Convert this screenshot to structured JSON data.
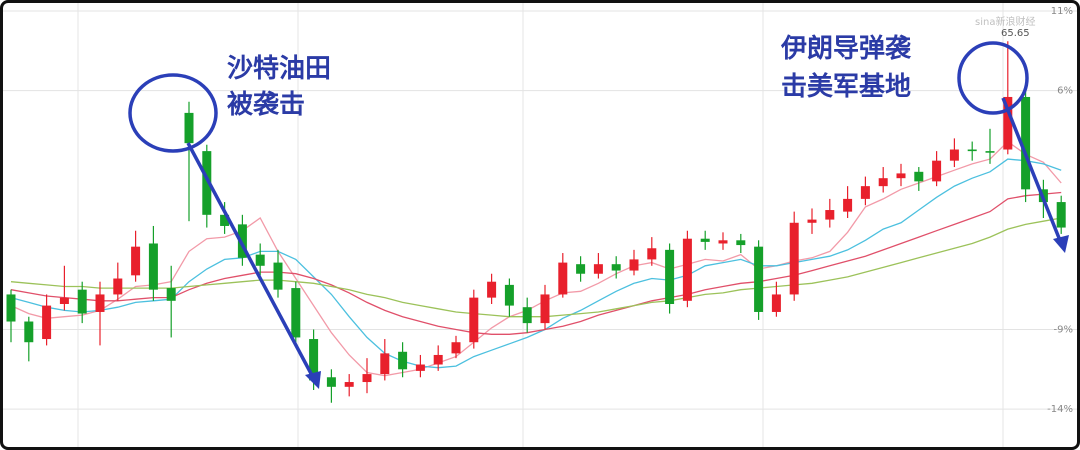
{
  "chart_data": {
    "type": "candlestick",
    "ylim": [
      -15.5,
      11.5
    ],
    "yticks": [
      {
        "value": 11,
        "label": "11%"
      },
      {
        "value": 6,
        "label": "6%"
      },
      {
        "value": -9,
        "label": "-9%"
      },
      {
        "value": -14,
        "label": "-14%"
      }
    ],
    "grid": true,
    "up_color": "#e8202c",
    "down_color": "#15a02a",
    "annotations": [
      "沙特油田",
      "被袭击",
      "伊朗导弹袭",
      "击美军基地"
    ],
    "peak_label": "65.65",
    "watermark": "sina新浪财经",
    "ohlc": [
      [
        -6.8,
        -6.5,
        -9.8,
        -8.5
      ],
      [
        -8.5,
        -8.2,
        -11.0,
        -9.8
      ],
      [
        -9.6,
        -6.8,
        -10.0,
        -7.5
      ],
      [
        -7.4,
        -5.0,
        -7.8,
        -7.0
      ],
      [
        -6.5,
        -6.0,
        -8.6,
        -8.0
      ],
      [
        -7.9,
        -6.0,
        -10.0,
        -6.8
      ],
      [
        -6.8,
        -4.8,
        -7.2,
        -5.8
      ],
      [
        -5.6,
        -2.8,
        -6.0,
        -3.8
      ],
      [
        -3.6,
        -2.5,
        -7.2,
        -6.5
      ],
      [
        -6.4,
        -5.0,
        -9.5,
        -7.2
      ],
      [
        4.6,
        5.3,
        -2.2,
        2.7
      ],
      [
        2.2,
        2.6,
        -2.6,
        -1.8
      ],
      [
        -1.8,
        -1.0,
        -3.0,
        -2.5
      ],
      [
        -2.4,
        -1.8,
        -5.0,
        -4.5
      ],
      [
        -4.3,
        -3.6,
        -5.6,
        -5.0
      ],
      [
        -4.8,
        -4.0,
        -7.0,
        -6.5
      ],
      [
        -6.4,
        -6.0,
        -10.0,
        -9.5
      ],
      [
        -9.6,
        -9.0,
        -12.8,
        -12.2
      ],
      [
        -12.0,
        -11.5,
        -13.6,
        -12.6
      ],
      [
        -12.6,
        -11.8,
        -13.2,
        -12.3
      ],
      [
        -12.3,
        -10.8,
        -13.0,
        -11.8
      ],
      [
        -11.8,
        -9.6,
        -12.2,
        -10.5
      ],
      [
        -10.4,
        -9.8,
        -12.0,
        -11.5
      ],
      [
        -11.6,
        -10.6,
        -12.0,
        -11.2
      ],
      [
        -11.2,
        -10.0,
        -11.6,
        -10.6
      ],
      [
        -10.5,
        -9.4,
        -10.8,
        -9.8
      ],
      [
        -9.8,
        -6.5,
        -10.2,
        -7.0
      ],
      [
        -7.0,
        -5.5,
        -7.4,
        -6.0
      ],
      [
        -6.2,
        -5.8,
        -8.2,
        -7.5
      ],
      [
        -7.6,
        -7.0,
        -9.2,
        -8.6
      ],
      [
        -8.6,
        -6.2,
        -9.0,
        -6.8
      ],
      [
        -6.8,
        -4.2,
        -7.0,
        -4.8
      ],
      [
        -4.9,
        -4.4,
        -6.0,
        -5.5
      ],
      [
        -5.5,
        -4.2,
        -5.8,
        -4.9
      ],
      [
        -4.9,
        -4.4,
        -5.8,
        -5.3
      ],
      [
        -5.3,
        -4.0,
        -5.6,
        -4.6
      ],
      [
        -4.6,
        -3.2,
        -5.0,
        -3.9
      ],
      [
        -4.0,
        -3.6,
        -8.0,
        -7.4
      ],
      [
        -7.2,
        -2.8,
        -7.6,
        -3.3
      ],
      [
        -3.3,
        -2.8,
        -4.0,
        -3.5
      ],
      [
        -3.6,
        -2.9,
        -4.0,
        -3.4
      ],
      [
        -3.4,
        -3.0,
        -4.2,
        -3.7
      ],
      [
        -3.8,
        -3.4,
        -8.4,
        -7.9
      ],
      [
        -7.9,
        -6.0,
        -8.2,
        -6.8
      ],
      [
        -6.8,
        -1.6,
        -7.2,
        -2.3
      ],
      [
        -2.3,
        -1.4,
        -3.0,
        -2.1
      ],
      [
        -2.1,
        -0.8,
        -2.6,
        -1.5
      ],
      [
        -1.6,
        0.0,
        -2.0,
        -0.8
      ],
      [
        -0.8,
        0.6,
        -1.2,
        0.0
      ],
      [
        0.0,
        1.2,
        -0.4,
        0.5
      ],
      [
        0.5,
        1.4,
        0.0,
        0.8
      ],
      [
        0.9,
        1.2,
        -0.3,
        0.3
      ],
      [
        0.3,
        2.2,
        0.0,
        1.6
      ],
      [
        1.6,
        3.0,
        1.2,
        2.3
      ],
      [
        2.3,
        2.8,
        1.6,
        2.2
      ],
      [
        2.2,
        3.6,
        1.4,
        2.1
      ],
      [
        2.3,
        9.1,
        2.0,
        5.6
      ],
      [
        5.6,
        6.0,
        -1.0,
        -0.2
      ],
      [
        -0.2,
        0.4,
        -2.0,
        -1.0
      ],
      [
        -1.0,
        -0.6,
        -3.0,
        -2.6
      ]
    ],
    "series": [
      {
        "color": "#f29aa8",
        "values": [
          -7.5,
          -8,
          -8.3,
          -8.2,
          -8.1,
          -7.8,
          -7.1,
          -6.3,
          -6.2,
          -6.0,
          -4.1,
          -3.3,
          -3.2,
          -2.8,
          -2.0,
          -4.1,
          -5.8,
          -7.5,
          -9.2,
          -10.6,
          -11.7,
          -11.9,
          -11.7,
          -11.5,
          -11.1,
          -10.7,
          -9.8,
          -8.9,
          -8.2,
          -7.8,
          -7.2,
          -6.7,
          -6.6,
          -6.1,
          -5.5,
          -5.0,
          -4.8,
          -5.2,
          -4.9,
          -4.6,
          -4.7,
          -4.3,
          -5.2,
          -5.0,
          -4.7,
          -4.5,
          -4.1,
          -2.9,
          -1.3,
          -0.8,
          -0.2,
          0.2,
          0.6,
          1.0,
          1.4,
          1.7,
          2.8,
          2.0,
          1.5,
          0.2
        ]
      },
      {
        "color": "#4cc0df",
        "values": [
          -7.0,
          -7.3,
          -7.6,
          -7.8,
          -7.9,
          -7.8,
          -7.6,
          -7.3,
          -7.2,
          -7.1,
          -6.0,
          -5.2,
          -4.6,
          -4.5,
          -4.1,
          -4.1,
          -4.6,
          -5.7,
          -6.8,
          -8.2,
          -9.5,
          -10.5,
          -11.0,
          -11.3,
          -11.4,
          -11.3,
          -10.7,
          -10.3,
          -9.9,
          -9.5,
          -9.0,
          -8.3,
          -7.8,
          -7.2,
          -6.6,
          -6.1,
          -5.8,
          -5.9,
          -5.6,
          -5.0,
          -4.8,
          -4.6,
          -5.0,
          -5.0,
          -4.8,
          -4.6,
          -4.4,
          -4.0,
          -3.4,
          -2.7,
          -2.3,
          -1.5,
          -0.7,
          0.0,
          0.5,
          0.9,
          1.7,
          1.6,
          1.4,
          1.0
        ]
      },
      {
        "color": "#e0506a",
        "values": [
          -6.5,
          -6.7,
          -6.9,
          -7.0,
          -7.1,
          -7.2,
          -7.2,
          -7.1,
          -7.0,
          -7.0,
          -6.5,
          -6.1,
          -5.8,
          -5.6,
          -5.4,
          -5.4,
          -5.5,
          -5.8,
          -6.2,
          -6.7,
          -7.3,
          -7.8,
          -8.2,
          -8.5,
          -8.8,
          -9.0,
          -9.2,
          -9.3,
          -9.3,
          -9.2,
          -9.0,
          -8.8,
          -8.5,
          -8.1,
          -7.8,
          -7.5,
          -7.2,
          -7.0,
          -6.8,
          -6.5,
          -6.3,
          -6.1,
          -6.0,
          -5.8,
          -5.6,
          -5.3,
          -5.0,
          -4.7,
          -4.4,
          -4.0,
          -3.6,
          -3.2,
          -2.8,
          -2.4,
          -2.0,
          -1.6,
          -0.8,
          -0.6,
          -0.5,
          -0.4
        ]
      },
      {
        "color": "#9cc25a",
        "values": [
          -6.0,
          -6.1,
          -6.2,
          -6.3,
          -6.3,
          -6.4,
          -6.4,
          -6.4,
          -6.4,
          -6.4,
          -6.3,
          -6.2,
          -6.1,
          -6.0,
          -5.9,
          -5.9,
          -6.0,
          -6.1,
          -6.3,
          -6.5,
          -6.8,
          -7.0,
          -7.3,
          -7.5,
          -7.7,
          -7.9,
          -8.0,
          -8.1,
          -8.2,
          -8.2,
          -8.2,
          -8.1,
          -8.0,
          -7.9,
          -7.7,
          -7.5,
          -7.3,
          -7.2,
          -7.0,
          -6.8,
          -6.7,
          -6.5,
          -6.4,
          -6.3,
          -6.2,
          -6.1,
          -5.9,
          -5.7,
          -5.4,
          -5.1,
          -4.8,
          -4.5,
          -4.2,
          -3.9,
          -3.6,
          -3.2,
          -2.7,
          -2.4,
          -2.2,
          -2.0
        ]
      }
    ]
  }
}
